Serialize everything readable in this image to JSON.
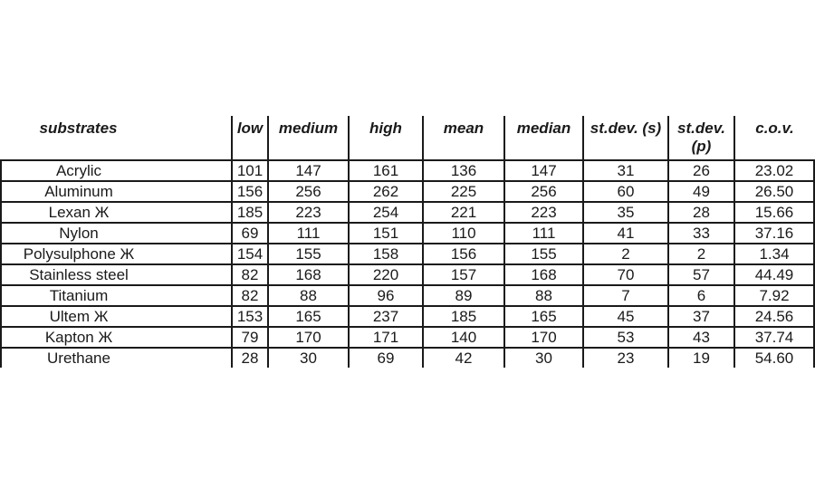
{
  "page": {
    "background": "#ffffff",
    "border_color": "#1a1a1a",
    "text_color": "#1a1a1a"
  },
  "table": {
    "columns": [
      {
        "key": "substrates",
        "label": "substrates"
      },
      {
        "key": "low",
        "label": "low"
      },
      {
        "key": "medium",
        "label": "medium"
      },
      {
        "key": "high",
        "label": "high"
      },
      {
        "key": "mean",
        "label": "mean"
      },
      {
        "key": "median",
        "label": "median"
      },
      {
        "key": "stdev_s",
        "label": "st.dev. (s)"
      },
      {
        "key": "stdev_p",
        "label": "st.dev. (p)"
      },
      {
        "key": "cov",
        "label": "c.o.v."
      }
    ],
    "rows": [
      [
        "Acrylic",
        "101",
        "147",
        "161",
        "136",
        "147",
        "31",
        "26",
        "23.02"
      ],
      [
        "Aluminum",
        "156",
        "256",
        "262",
        "225",
        "256",
        "60",
        "49",
        "26.50"
      ],
      [
        "Lexan Ж",
        "185",
        "223",
        "254",
        "221",
        "223",
        "35",
        "28",
        "15.66"
      ],
      [
        "Nylon",
        "69",
        "111",
        "151",
        "110",
        "111",
        "41",
        "33",
        "37.16"
      ],
      [
        "Polysulphone Ж",
        "154",
        "155",
        "158",
        "156",
        "155",
        "2",
        "2",
        "1.34"
      ],
      [
        "Stainless steel",
        "82",
        "168",
        "220",
        "157",
        "168",
        "70",
        "57",
        "44.49"
      ],
      [
        "Titanium",
        "82",
        "88",
        "96",
        "89",
        "88",
        "7",
        "6",
        "7.92"
      ],
      [
        "Ultem Ж",
        "153",
        "165",
        "237",
        "185",
        "165",
        "45",
        "37",
        "24.56"
      ],
      [
        "Kapton Ж",
        "79",
        "170",
        "171",
        "140",
        "170",
        "53",
        "43",
        "37.74"
      ],
      [
        "Urethane",
        "28",
        "30",
        "69",
        "42",
        "30",
        "23",
        "19",
        "54.60"
      ]
    ]
  }
}
